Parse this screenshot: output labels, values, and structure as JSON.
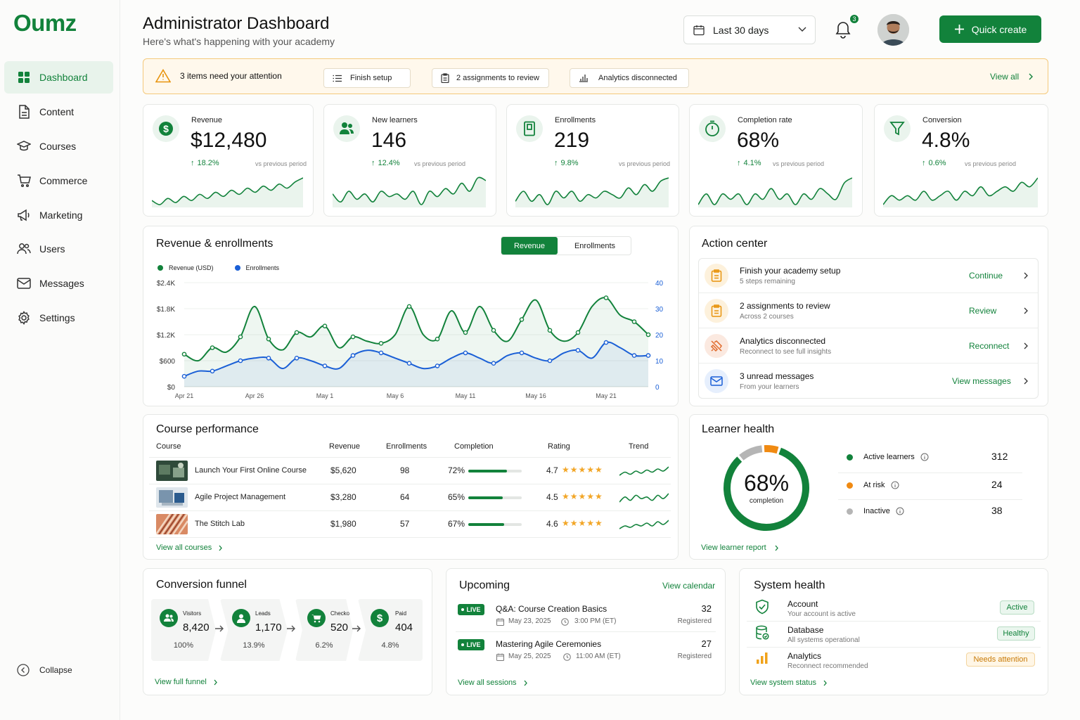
{
  "sidebar": {
    "logo": "Oumz",
    "items": [
      {
        "label": "Dashboard",
        "icon": "grid-icon"
      },
      {
        "label": "Content",
        "icon": "file-icon"
      },
      {
        "label": "Courses",
        "icon": "graduation-cap-icon"
      },
      {
        "label": "Commerce",
        "icon": "cart-icon"
      },
      {
        "label": "Marketing",
        "icon": "megaphone-icon"
      },
      {
        "label": "Users",
        "icon": "users-icon"
      },
      {
        "label": "Messages",
        "icon": "mail-icon"
      },
      {
        "label": "Settings",
        "icon": "gear-icon"
      }
    ],
    "collapse_label": "Collapse"
  },
  "header": {
    "title": "Administrator Dashboard",
    "subtitle": "Here's what's happening with your academy",
    "date_range": "Last 30 days",
    "notification_count": "3",
    "quick_create": "Quick create"
  },
  "alert": {
    "text": "3 items need your attention",
    "chips": [
      "Finish setup",
      "2 assignments to review",
      "Analytics disconnected"
    ],
    "view_all": "View all"
  },
  "kpis": [
    {
      "label": "Revenue",
      "value": "$12,480",
      "delta": "18.2%",
      "vs": "vs previous period",
      "icon": "dollar-icon",
      "spark": [
        40,
        30,
        45,
        35,
        50,
        40,
        55,
        45,
        60,
        50,
        65,
        55,
        70,
        60,
        75,
        65,
        80,
        70,
        85,
        95
      ]
    },
    {
      "label": "New learners",
      "value": "146",
      "delta": "12.4%",
      "vs": "vs previous period",
      "icon": "users-icon",
      "spark": [
        50,
        35,
        55,
        40,
        50,
        35,
        55,
        45,
        50,
        40,
        55,
        30,
        55,
        45,
        60,
        50,
        70,
        55,
        80,
        75
      ]
    },
    {
      "label": "Enrollments",
      "value": "219",
      "delta": "9.8%",
      "vs": "vs previous period",
      "icon": "book-icon",
      "spark": [
        40,
        55,
        40,
        50,
        35,
        55,
        45,
        55,
        40,
        50,
        45,
        55,
        50,
        45,
        60,
        50,
        65,
        55,
        70,
        75
      ]
    },
    {
      "label": "Completion rate",
      "value": "68%",
      "delta": "4.1%",
      "vs": "vs previous period",
      "icon": "timer-icon",
      "spark": [
        45,
        55,
        45,
        55,
        50,
        55,
        45,
        55,
        50,
        60,
        50,
        55,
        45,
        55,
        50,
        60,
        55,
        50,
        65,
        70
      ]
    },
    {
      "label": "Conversion",
      "value": "4.8%",
      "delta": "0.6%",
      "vs": "vs previous period",
      "icon": "filter-icon",
      "spark": [
        40,
        50,
        45,
        50,
        45,
        55,
        45,
        50,
        55,
        45,
        55,
        50,
        60,
        50,
        55,
        60,
        55,
        65,
        60,
        70
      ]
    }
  ],
  "revenue_chart": {
    "title": "Revenue & enrollments",
    "toggle": [
      "Revenue",
      "Enrollments"
    ],
    "legend": [
      "Revenue (USD)",
      "Enrollments"
    ]
  },
  "chart_data": {
    "type": "line",
    "x": [
      "Apr 21",
      "Apr 22",
      "Apr 23",
      "Apr 24",
      "Apr 25",
      "Apr 26",
      "Apr 27",
      "Apr 28",
      "Apr 29",
      "Apr 30",
      "May 1",
      "May 2",
      "May 3",
      "May 4",
      "May 5",
      "May 6",
      "May 7",
      "May 8",
      "May 9",
      "May 10",
      "May 11",
      "May 12",
      "May 13",
      "May 14",
      "May 15",
      "May 16",
      "May 17",
      "May 18",
      "May 19",
      "May 20",
      "May 21",
      "May 22",
      "May 23",
      "May 24"
    ],
    "x_tick_labels": [
      "Apr 21",
      "Apr 26",
      "May 1",
      "May 6",
      "May 11",
      "May 16",
      "May 21"
    ],
    "y_left_ticks": [
      "$0",
      "$600",
      "$1.2K",
      "$1.8K",
      "$2.4K"
    ],
    "y_right_ticks": [
      "0",
      "10",
      "20",
      "30",
      "40"
    ],
    "ylim_left": [
      0,
      2400
    ],
    "ylim_right": [
      0,
      40
    ],
    "series": [
      {
        "name": "Revenue (USD)",
        "axis": "left",
        "color": "#12823b",
        "values": [
          750,
          600,
          900,
          800,
          1150,
          1850,
          1100,
          850,
          1250,
          1150,
          1400,
          900,
          1150,
          1050,
          1000,
          1200,
          1850,
          1200,
          1100,
          1750,
          1250,
          1850,
          1300,
          1050,
          1550,
          2000,
          1300,
          1050,
          1250,
          1850,
          2050,
          1650,
          1500,
          1200
        ]
      },
      {
        "name": "Enrollments",
        "axis": "right",
        "color": "#1a5fd6",
        "values": [
          4,
          6,
          6,
          8,
          10,
          11,
          11,
          7,
          11,
          10,
          8,
          7,
          12,
          14,
          13,
          11,
          9,
          7,
          8,
          11,
          13,
          11,
          9,
          12,
          13,
          11,
          10,
          13,
          14,
          11,
          17,
          15,
          12,
          12
        ]
      }
    ]
  },
  "action_center": {
    "title": "Action center",
    "items": [
      {
        "title": "Finish your academy setup",
        "sub": "5 steps remaining",
        "action": "Continue",
        "icon": "clipboard-icon"
      },
      {
        "title": "2 assignments to review",
        "sub": "Across 2 courses",
        "action": "Review",
        "icon": "clipboard-icon"
      },
      {
        "title": "Analytics disconnected",
        "sub": "Reconnect to see full insights",
        "action": "Reconnect",
        "icon": "unplug-icon"
      },
      {
        "title": "3 unread messages",
        "sub": "From your learners",
        "action": "View messages",
        "icon": "mail-icon"
      }
    ]
  },
  "course_performance": {
    "title": "Course performance",
    "headers": [
      "Course",
      "Revenue",
      "Enrollments",
      "Completion",
      "Rating",
      "Trend"
    ],
    "rows": [
      {
        "course": "Launch Your First Online Course",
        "revenue": "$5,620",
        "enrollments": "98",
        "completion": "72%",
        "completion_value": 0.72,
        "rating": "4.7",
        "trend": [
          30,
          45,
          35,
          50,
          40,
          55,
          45,
          60,
          50,
          70
        ]
      },
      {
        "course": "Agile Project Management",
        "revenue": "$3,280",
        "enrollments": "64",
        "completion": "65%",
        "completion_value": 0.65,
        "rating": "4.5",
        "trend": [
          35,
          50,
          40,
          55,
          45,
          50,
          40,
          55,
          45,
          60
        ]
      },
      {
        "course": "The Stitch Lab",
        "revenue": "$1,980",
        "enrollments": "57",
        "completion": "67%",
        "completion_value": 0.67,
        "rating": "4.6",
        "trend": [
          35,
          45,
          40,
          50,
          45,
          55,
          45,
          60,
          50,
          65
        ]
      }
    ],
    "view_all": "View all courses"
  },
  "learner_health": {
    "title": "Learner health",
    "percent": "68%",
    "label": "completion",
    "segments": [
      {
        "label": "Active learners",
        "value": "312",
        "count": 312,
        "color": "#12823b"
      },
      {
        "label": "At risk",
        "value": "24",
        "count": 24,
        "color": "#f08a12"
      },
      {
        "label": "Inactive",
        "value": "38",
        "count": 38,
        "color": "#b5b5b5"
      }
    ],
    "view_report": "View learner report"
  },
  "funnel": {
    "title": "Conversion funnel",
    "steps": [
      {
        "label": "Visitors",
        "value": "8,420",
        "pct": "100%",
        "icon": "users-icon"
      },
      {
        "label": "Leads",
        "value": "1,170",
        "pct": "13.9%",
        "icon": "user-icon"
      },
      {
        "label": "Checkout",
        "value": "520",
        "pct": "6.2%",
        "icon": "cart-icon"
      },
      {
        "label": "Paid",
        "value": "404",
        "pct": "4.8%",
        "icon": "dollar-icon"
      }
    ],
    "view_full": "View full funnel"
  },
  "upcoming": {
    "title": "Upcoming",
    "view_calendar": "View calendar",
    "live_label": "LIVE",
    "sessions": [
      {
        "title": "Q&A: Course Creation Basics",
        "date": "May 23, 2025",
        "time": "3:00 PM (ET)",
        "count": "32",
        "count_label": "Registered"
      },
      {
        "title": "Mastering Agile Ceremonies",
        "date": "May 25, 2025",
        "time": "11:00 AM (ET)",
        "count": "27",
        "count_label": "Registered"
      }
    ],
    "view_all": "View all sessions"
  },
  "system_health": {
    "title": "System health",
    "items": [
      {
        "title": "Account",
        "sub": "Your account is active",
        "status": "Active",
        "icon": "shield-check-icon"
      },
      {
        "title": "Database",
        "sub": "All systems operational",
        "status": "Healthy",
        "icon": "database-icon"
      },
      {
        "title": "Analytics",
        "sub": "Reconnect recommended",
        "status": "Needs attention",
        "icon": "bar-chart-icon"
      }
    ],
    "view_status": "View system status"
  }
}
